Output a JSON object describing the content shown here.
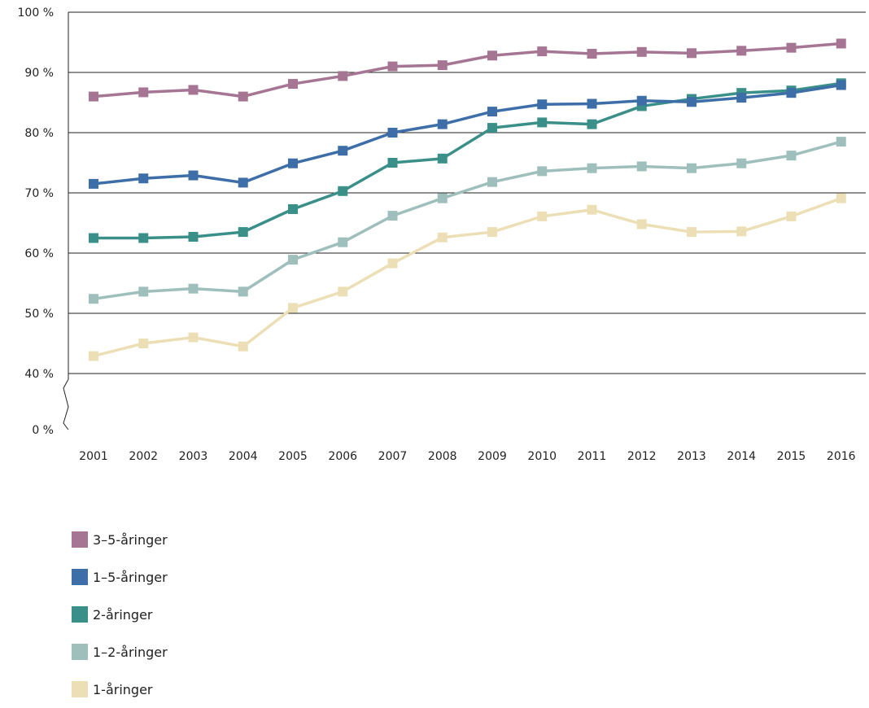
{
  "chart_data": {
    "type": "line",
    "title": "",
    "xlabel": "",
    "ylabel": "",
    "x": [
      "2001",
      "2002",
      "2003",
      "2004",
      "2005",
      "2006",
      "2007",
      "2008",
      "2009",
      "2010",
      "2011",
      "2012",
      "2013",
      "2014",
      "2015",
      "2016"
    ],
    "y_ticks": [
      "100 %",
      "90 %",
      "80 %",
      "70 %",
      "60 %",
      "50 %",
      "40 %",
      "0 %"
    ],
    "ylim": [
      40,
      100
    ],
    "y_axis_break": "between 40 % and 0 %",
    "grid": true,
    "legend_position": "bottom-left",
    "series": [
      {
        "name": "3–5-åringer",
        "color": "#a57593",
        "values": [
          86.0,
          86.7,
          87.1,
          86.0,
          88.1,
          89.4,
          91.0,
          91.2,
          92.8,
          93.5,
          93.1,
          93.4,
          93.2,
          93.6,
          94.1,
          94.8
        ]
      },
      {
        "name": "1–5-åringer",
        "color": "#3d6ea8",
        "values": [
          71.5,
          72.4,
          72.9,
          71.7,
          74.9,
          77.0,
          80.0,
          81.4,
          83.5,
          84.7,
          84.8,
          85.3,
          85.1,
          85.8,
          86.6,
          87.9
        ]
      },
      {
        "name": "2-åringer",
        "color": "#3a9088",
        "values": [
          62.5,
          62.5,
          62.7,
          63.5,
          67.3,
          70.3,
          75.0,
          75.7,
          80.8,
          81.7,
          81.4,
          84.4,
          85.6,
          86.6,
          87.0,
          88.2
        ]
      },
      {
        "name": "1–2-åringer",
        "color": "#9ebfbb",
        "values": [
          52.4,
          53.6,
          54.1,
          53.6,
          58.9,
          61.8,
          66.2,
          69.1,
          71.8,
          73.6,
          74.1,
          74.4,
          74.1,
          74.9,
          76.2,
          78.5
        ]
      },
      {
        "name": "1-åringer",
        "color": "#ecdfb6",
        "values": [
          42.9,
          45.0,
          46.0,
          44.5,
          50.9,
          53.6,
          58.3,
          62.6,
          63.5,
          66.1,
          67.2,
          64.8,
          63.5,
          63.6,
          66.1,
          69.1
        ]
      }
    ]
  }
}
